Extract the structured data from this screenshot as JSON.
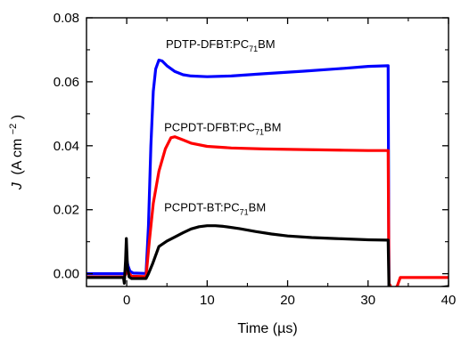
{
  "chart_data": {
    "type": "line",
    "title": "",
    "xlabel": "Time (µs)",
    "ylabel_main": "J",
    "ylabel_unit": "(A cm",
    "ylabel_exp": "−2",
    "ylabel_close": ")",
    "xlim": [
      -5,
      40
    ],
    "ylim": [
      -0.004,
      0.08
    ],
    "xticks": [
      0,
      10,
      20,
      30,
      40
    ],
    "xtick_labels": [
      "0",
      "10",
      "20",
      "30",
      "40"
    ],
    "yticks": [
      0.0,
      0.02,
      0.04,
      0.06,
      0.08
    ],
    "ytick_labels": [
      "0.00",
      "0.02",
      "0.04",
      "0.06",
      "0.08"
    ],
    "grid": false,
    "legend": "none",
    "annotations": [
      {
        "series": "blue",
        "pre": "PDTP-DFBT:PC",
        "sub": "71",
        "post": "BM",
        "x": 2.2,
        "y": 0.0705
      },
      {
        "series": "red",
        "pre": "PCPDT-DFBT:PC",
        "sub": "71",
        "post": "BM",
        "x": 2.0,
        "y": 0.0445
      },
      {
        "series": "black",
        "pre": "PCPDT-BT:PC",
        "sub": "71",
        "post": "BM",
        "x": 2.0,
        "y": 0.0195
      }
    ],
    "series": [
      {
        "color": "#0000ff",
        "x": [
          -5,
          -0.3,
          -0.1,
          0.0,
          0.15,
          0.4,
          0.8,
          2.4,
          2.7,
          3.0,
          3.3,
          3.6,
          4.0,
          4.4,
          5.0,
          6.0,
          7.0,
          8.0,
          10.0,
          13.0,
          17.0,
          22.0,
          27.0,
          30.0,
          32.5,
          32.6,
          33.0,
          34.0,
          36.0,
          38.0,
          40.0
        ],
        "y": [
          0.0,
          0.0,
          0.0015,
          0.0045,
          0.0025,
          0.0008,
          0.0002,
          0.0001,
          0.015,
          0.04,
          0.057,
          0.064,
          0.0668,
          0.0665,
          0.065,
          0.0632,
          0.0622,
          0.0618,
          0.0616,
          0.0618,
          0.0625,
          0.0633,
          0.0642,
          0.0648,
          0.065,
          -0.005,
          -0.0052,
          -0.005,
          -0.0048,
          -0.0046,
          -0.0045
        ]
      },
      {
        "color": "#ff0000",
        "x": [
          -5,
          -0.3,
          -0.1,
          0.0,
          0.2,
          0.6,
          2.4,
          2.8,
          3.3,
          4.0,
          4.8,
          5.5,
          6.0,
          7.0,
          8.0,
          10.0,
          13.0,
          17.0,
          22.0,
          27.0,
          30.0,
          32.5,
          32.6,
          33.0,
          33.6,
          34.0,
          36.0,
          38.0,
          40.0
        ],
        "y": [
          -0.001,
          -0.001,
          0.0,
          0.002,
          0.0005,
          -0.0008,
          -0.0009,
          0.01,
          0.022,
          0.032,
          0.039,
          0.0425,
          0.0428,
          0.0418,
          0.0408,
          0.0398,
          0.0393,
          0.039,
          0.0388,
          0.0386,
          0.0385,
          0.0385,
          -0.003,
          -0.0048,
          -0.004,
          -0.0012,
          -0.0012,
          -0.0012,
          -0.0012
        ]
      },
      {
        "color": "#000000",
        "x": [
          -5,
          -0.4,
          -0.3,
          -0.15,
          -0.05,
          0.0,
          0.1,
          0.3,
          0.6,
          2.4,
          2.7,
          3.2,
          4.0,
          5.0,
          6.0,
          7.0,
          8.0,
          9.0,
          10.0,
          11.0,
          12.0,
          14.0,
          16.0,
          18.0,
          20.0,
          23.0,
          26.0,
          30.0,
          32.5,
          32.6,
          33.0,
          34.0,
          36.0,
          38.0,
          39.0,
          40.0
        ],
        "y": [
          -0.0012,
          -0.0012,
          -0.003,
          0.004,
          0.011,
          0.008,
          0.002,
          -0.001,
          -0.0015,
          -0.0015,
          0.0,
          0.003,
          0.0085,
          0.0102,
          0.0115,
          0.0128,
          0.014,
          0.0147,
          0.015,
          0.015,
          0.0148,
          0.0141,
          0.0132,
          0.0124,
          0.0118,
          0.0113,
          0.011,
          0.0106,
          0.0105,
          -0.004,
          -0.0058,
          -0.0066,
          -0.006,
          -0.0048,
          -0.0043,
          -0.004
        ]
      }
    ]
  }
}
